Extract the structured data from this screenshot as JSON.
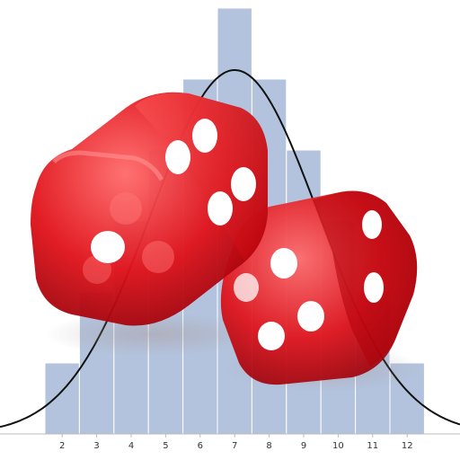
{
  "chart_data": {
    "type": "bar",
    "categories": [
      "2",
      "3",
      "4",
      "5",
      "6",
      "7",
      "8",
      "9",
      "10",
      "11",
      "12"
    ],
    "values": [
      1,
      2,
      3,
      4,
      5,
      6,
      5,
      4,
      3,
      2,
      1
    ],
    "ylim": [
      0,
      6
    ],
    "overlay": {
      "type": "line",
      "shape": "normal curve",
      "mean": 7,
      "sd": 2.42
    },
    "grid": false,
    "legend": "none",
    "colors": {
      "bar": "#b3c3dd",
      "bar_edge": "#ffffff",
      "curve": "#111111",
      "axis": "#bbbbbb"
    }
  },
  "illustration": {
    "subject": "two red translucent dice",
    "faces_shown": [
      4,
      5
    ],
    "color": "#d4111a"
  }
}
